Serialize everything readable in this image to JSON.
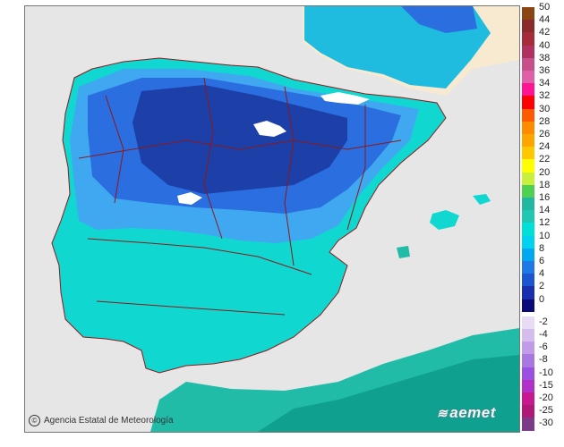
{
  "credit": "Agencia Estatal de Meteorología",
  "brand": "aemet",
  "legend": {
    "positive": [
      {
        "label": "50",
        "color": "#8b4513"
      },
      {
        "label": "44",
        "color": "#8b2a2a"
      },
      {
        "label": "42",
        "color": "#a52a3a"
      },
      {
        "label": "40",
        "color": "#b03060"
      },
      {
        "label": "38",
        "color": "#c8508a"
      },
      {
        "label": "36",
        "color": "#e060a8"
      },
      {
        "label": "34",
        "color": "#ff1493"
      },
      {
        "label": "32",
        "color": "#ff0000"
      },
      {
        "label": "30",
        "color": "#ff5a00"
      },
      {
        "label": "28",
        "color": "#ff8c00"
      },
      {
        "label": "26",
        "color": "#ffa500"
      },
      {
        "label": "24",
        "color": "#ffc800"
      },
      {
        "label": "22",
        "color": "#ffff00"
      },
      {
        "label": "20",
        "color": "#c8f03c"
      },
      {
        "label": "18",
        "color": "#50d050"
      },
      {
        "label": "16",
        "color": "#20b8a0"
      },
      {
        "label": "14",
        "color": "#20c8b4"
      },
      {
        "label": "12",
        "color": "#00e0d8"
      },
      {
        "label": "10",
        "color": "#00d2f0"
      },
      {
        "label": "8",
        "color": "#00a8f0"
      },
      {
        "label": "6",
        "color": "#1e78e6"
      },
      {
        "label": "4",
        "color": "#1c55d0"
      },
      {
        "label": "2",
        "color": "#1a2fb0"
      },
      {
        "label": "0",
        "color": "#0a0a78"
      }
    ],
    "negative": [
      {
        "label": "-2",
        "color": "#e8dcf4"
      },
      {
        "label": "-4",
        "color": "#d4bcee"
      },
      {
        "label": "-6",
        "color": "#c09ce8"
      },
      {
        "label": "-8",
        "color": "#a878e0"
      },
      {
        "label": "-10",
        "color": "#9a50e0"
      },
      {
        "label": "-15",
        "color": "#b030c8"
      },
      {
        "label": "-20",
        "color": "#c81890"
      },
      {
        "label": "-25",
        "color": "#b01878"
      },
      {
        "label": "-30",
        "color": "#7a3a88"
      }
    ]
  },
  "map_colors": {
    "sea": "#e6e6e6",
    "france": "#f7ead0",
    "deep": "#1c3fa8",
    "mid": "#2a6ee0",
    "light": "#40a8f0",
    "warm": "#10d8d0",
    "coast": "#20bca8",
    "snow": "#ffffff",
    "border": "#8b1a1a"
  }
}
